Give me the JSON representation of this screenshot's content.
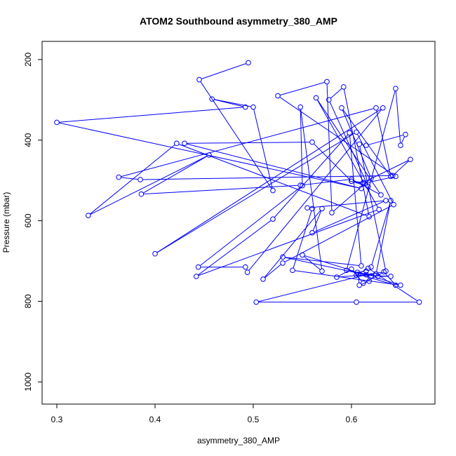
{
  "chart_data": {
    "type": "line",
    "title": "ATOM2 Southbound asymmetry_380_AMP",
    "xlabel": "asymmetry_380_AMP",
    "ylabel": "Pressure (mbar)",
    "xlim": [
      0.285,
      0.685
    ],
    "ylim": [
      1055,
      155
    ],
    "y_inverted": true,
    "x_ticks": [
      0.3,
      0.4,
      0.5,
      0.6
    ],
    "x_tick_labels": [
      "0.3",
      "0.4",
      "0.5",
      "0.6"
    ],
    "y_ticks": [
      200,
      400,
      600,
      800,
      1000
    ],
    "y_tick_labels": [
      "200",
      "400",
      "600",
      "800",
      "1000"
    ],
    "grid": false,
    "legend": "none",
    "series": [
      {
        "color": "#0000ff",
        "marker": "open-circle",
        "x": [
          0.495,
          0.445,
          0.52,
          0.5,
          0.458,
          0.492,
          0.3,
          0.61,
          0.43,
          0.56,
          0.6,
          0.612,
          0.645,
          0.525,
          0.575,
          0.58,
          0.62,
          0.59,
          0.64,
          0.625,
          0.363,
          0.385,
          0.642,
          0.66,
          0.612,
          0.6,
          0.617,
          0.577,
          0.592,
          0.618,
          0.422,
          0.332,
          0.455,
          0.386,
          0.548,
          0.6,
          0.63,
          0.564,
          0.628,
          0.442,
          0.52,
          0.598,
          0.61,
          0.53,
          0.62,
          0.65,
          0.54,
          0.56,
          0.555,
          0.635,
          0.56,
          0.57,
          0.51,
          0.53,
          0.643,
          0.605,
          0.4,
          0.632,
          0.494,
          0.492,
          0.444,
          0.55,
          0.548,
          0.57,
          0.55,
          0.606,
          0.615,
          0.618,
          0.608,
          0.607,
          0.645,
          0.633,
          0.615,
          0.503,
          0.605,
          0.669,
          0.617,
          0.605,
          0.64,
          0.627,
          0.595,
          0.645,
          0.65,
          0.655,
          0.615,
          0.608,
          0.635,
          0.612,
          0.6,
          0.585,
          0.625,
          0.64,
          0.62
        ],
        "y": [
          208,
          250,
          525,
          318,
          298,
          318,
          356,
          520,
          408,
          405,
          502,
          508,
          490,
          290,
          255,
          580,
          495,
          320,
          490,
          320,
          492,
          498,
          488,
          448,
          505,
          502,
          515,
          300,
          268,
          590,
          408,
          587,
          437,
          534,
          512,
          497,
          536,
          295,
          572,
          738,
          596,
          382,
          712,
          690,
          737,
          760,
          723,
          570,
          568,
          550,
          630,
          570,
          745,
          705,
          560,
          380,
          682,
          320,
          728,
          715,
          715,
          513,
          318,
          725,
          685,
          728,
          725,
          750,
          760,
          733,
          760,
          727,
          734,
          802,
          802,
          802,
          718,
          735,
          738,
          738,
          723,
          272,
          413,
          386,
          413,
          410,
          725,
          755,
          720,
          740,
          732,
          550,
          715
        ]
      }
    ]
  }
}
